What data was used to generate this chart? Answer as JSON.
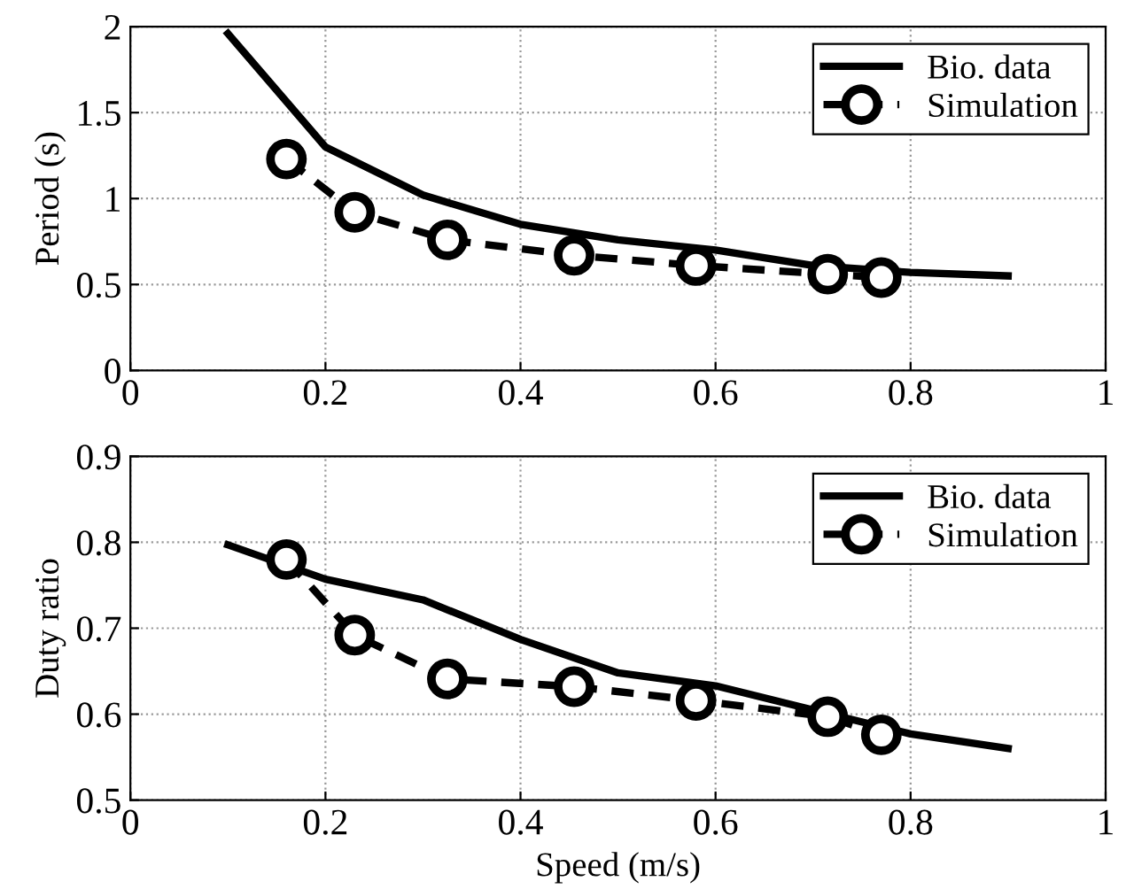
{
  "chart_data": [
    {
      "type": "line",
      "ylabel": "Period (s)",
      "xlim": [
        0,
        1
      ],
      "xticks": [
        0,
        0.2,
        0.4,
        0.6,
        0.8,
        1
      ],
      "ylim": [
        0,
        2
      ],
      "yticks": [
        0,
        0.5,
        1,
        1.5,
        2
      ],
      "grid": true,
      "legend": "top right",
      "series": [
        {
          "name": "Bio. data",
          "color": "#000000",
          "line_style": "solid",
          "marker": "none",
          "x": [
            0.1,
            0.2,
            0.3,
            0.4,
            0.5,
            0.6,
            0.7,
            0.8,
            0.9
          ],
          "values": [
            1.96,
            1.3,
            1.02,
            0.85,
            0.76,
            0.7,
            0.61,
            0.57,
            0.55
          ]
        },
        {
          "name": "Simulation",
          "color": "#000000",
          "line_style": "dashed",
          "marker": "circle",
          "x": [
            0.16,
            0.23,
            0.325,
            0.455,
            0.58,
            0.715,
            0.77
          ],
          "values": [
            1.23,
            0.92,
            0.76,
            0.67,
            0.61,
            0.56,
            0.54
          ]
        }
      ]
    },
    {
      "type": "line",
      "xlabel": "Speed (m/s)",
      "ylabel": "Duty ratio",
      "xlim": [
        0,
        1
      ],
      "xticks": [
        0,
        0.2,
        0.4,
        0.6,
        0.8,
        1
      ],
      "ylim": [
        0.5,
        0.9
      ],
      "yticks": [
        0.5,
        0.6,
        0.7,
        0.8,
        0.9
      ],
      "grid": true,
      "legend": "top right",
      "series": [
        {
          "name": "Bio. data",
          "color": "#000000",
          "line_style": "solid",
          "marker": "none",
          "x": [
            0.1,
            0.2,
            0.3,
            0.4,
            0.5,
            0.6,
            0.7,
            0.8,
            0.9
          ],
          "values": [
            0.797,
            0.757,
            0.733,
            0.687,
            0.648,
            0.633,
            0.605,
            0.577,
            0.56
          ]
        },
        {
          "name": "Simulation",
          "color": "#000000",
          "line_style": "dashed",
          "marker": "circle",
          "x": [
            0.16,
            0.23,
            0.325,
            0.455,
            0.58,
            0.715,
            0.77
          ],
          "values": [
            0.78,
            0.692,
            0.641,
            0.632,
            0.616,
            0.597,
            0.576
          ]
        }
      ]
    }
  ]
}
